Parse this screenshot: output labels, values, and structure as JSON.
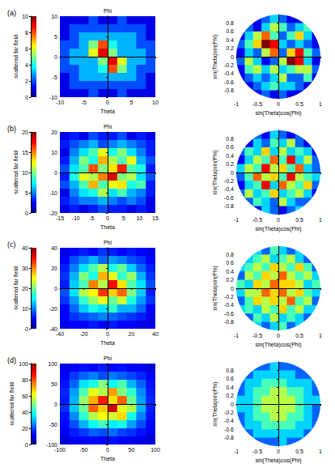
{
  "chart_data": [
    {
      "type": "surface",
      "title": "(a)",
      "xlabel": "Theta",
      "ylabel": "Phi",
      "zlabel": "scattered far field",
      "xlim": [
        -10,
        10
      ],
      "xticks": [
        -10,
        -5,
        0,
        5,
        10
      ],
      "ylim": [
        -10,
        10
      ],
      "yticks": [
        -10,
        -5,
        0,
        5,
        10
      ],
      "zlim": [
        0,
        10
      ],
      "zticks": [
        0,
        2,
        4,
        6,
        8,
        10
      ],
      "values": [
        [
          1,
          1,
          1,
          2,
          1,
          1,
          2,
          1,
          1,
          1
        ],
        [
          1,
          2,
          2,
          2,
          2,
          2,
          2,
          2,
          2,
          1
        ],
        [
          1,
          2,
          3,
          3,
          3,
          3,
          3,
          3,
          2,
          1
        ],
        [
          2,
          2,
          3,
          5,
          8,
          4,
          3,
          3,
          2,
          2
        ],
        [
          2,
          3,
          3,
          6,
          9,
          5,
          3,
          3,
          3,
          2
        ],
        [
          2,
          3,
          3,
          3,
          5,
          9,
          6,
          3,
          3,
          2
        ],
        [
          2,
          2,
          3,
          3,
          4,
          8,
          5,
          3,
          2,
          2
        ],
        [
          1,
          2,
          3,
          3,
          3,
          3,
          3,
          3,
          2,
          1
        ],
        [
          1,
          2,
          2,
          2,
          2,
          2,
          2,
          2,
          2,
          1
        ],
        [
          1,
          1,
          1,
          2,
          1,
          1,
          2,
          1,
          1,
          1
        ]
      ]
    },
    {
      "type": "heatmap",
      "xlabel": "sin(Theta)cos(Phi)",
      "ylabel": "sin(Theta)sin(Phi)",
      "xlim": [
        -1,
        1
      ],
      "xticks": [
        -1,
        -0.5,
        0,
        0.5,
        1
      ],
      "ylim": [
        -1,
        1
      ],
      "yticks": [
        -0.8,
        -0.6,
        -0.4,
        -0.2,
        0,
        0.2,
        0.4,
        0.6,
        0.8
      ],
      "clim": [
        0,
        9
      ],
      "values": [
        [
          null,
          null,
          1,
          2,
          3,
          2,
          1,
          1,
          null,
          null
        ],
        [
          null,
          2,
          1,
          3,
          5,
          4,
          2,
          3,
          4,
          null
        ],
        [
          1,
          3,
          5,
          7,
          4,
          2,
          4,
          6,
          3,
          1
        ],
        [
          2,
          4,
          6,
          9,
          8,
          3,
          2,
          3,
          2,
          1
        ],
        [
          1,
          3,
          2,
          5,
          7,
          2,
          6,
          8,
          4,
          2
        ],
        [
          2,
          5,
          3,
          1,
          2,
          5,
          9,
          8,
          3,
          1
        ],
        [
          1,
          4,
          5,
          3,
          5,
          3,
          4,
          5,
          5,
          2
        ],
        [
          1,
          2,
          3,
          2,
          3,
          5,
          2,
          2,
          4,
          1
        ],
        [
          null,
          1,
          2,
          3,
          4,
          3,
          3,
          2,
          1,
          null
        ],
        [
          null,
          null,
          1,
          2,
          1,
          2,
          1,
          1,
          null,
          null
        ]
      ]
    },
    {
      "type": "surface",
      "title": "(b)",
      "xlabel": "Theta",
      "ylabel": "Phi",
      "zlabel": "scattered far field",
      "xlim": [
        -15,
        15
      ],
      "xticks": [
        -15,
        -10,
        -5,
        0,
        5,
        10,
        15
      ],
      "ylim": [
        -20,
        20
      ],
      "yticks": [
        -20,
        -10,
        0,
        10,
        20
      ],
      "zlim": [
        0,
        20
      ],
      "zticks": [
        0,
        5,
        10,
        15,
        20
      ],
      "values": [
        [
          2,
          3,
          2,
          4,
          3,
          3,
          4,
          2,
          3,
          2
        ],
        [
          3,
          4,
          5,
          6,
          4,
          5,
          6,
          5,
          4,
          3
        ],
        [
          2,
          5,
          7,
          9,
          12,
          8,
          10,
          7,
          5,
          3
        ],
        [
          3,
          6,
          10,
          8,
          14,
          11,
          9,
          12,
          6,
          4
        ],
        [
          4,
          7,
          9,
          16,
          10,
          13,
          17,
          9,
          8,
          3
        ],
        [
          3,
          8,
          12,
          11,
          15,
          18,
          10,
          11,
          7,
          4
        ],
        [
          4,
          6,
          9,
          14,
          9,
          12,
          13,
          8,
          9,
          3
        ],
        [
          2,
          5,
          7,
          8,
          11,
          7,
          9,
          6,
          5,
          3
        ],
        [
          3,
          4,
          5,
          5,
          6,
          5,
          4,
          5,
          4,
          2
        ],
        [
          2,
          3,
          2,
          3,
          4,
          3,
          3,
          2,
          3,
          2
        ]
      ]
    },
    {
      "type": "heatmap",
      "xlabel": "sin(Theta)cos(Phi)",
      "ylabel": "sin(Theta)sin(Phi)",
      "xlim": [
        -1,
        1
      ],
      "xticks": [
        -1,
        -0.5,
        0,
        0.5,
        1
      ],
      "ylim": [
        -1,
        1
      ],
      "yticks": [
        -0.8,
        -0.6,
        -0.4,
        -0.2,
        0,
        0.2,
        0.4,
        0.6,
        0.8
      ],
      "clim": [
        0,
        9
      ],
      "values": [
        [
          null,
          null,
          2,
          1,
          3,
          2,
          1,
          2,
          null,
          null
        ],
        [
          null,
          1,
          3,
          2,
          4,
          3,
          5,
          2,
          1,
          null
        ],
        [
          2,
          4,
          3,
          6,
          3,
          5,
          3,
          4,
          3,
          1
        ],
        [
          1,
          3,
          5,
          4,
          7,
          4,
          8,
          3,
          5,
          2
        ],
        [
          3,
          5,
          4,
          8,
          5,
          6,
          4,
          7,
          3,
          2
        ],
        [
          2,
          4,
          7,
          5,
          6,
          4,
          8,
          5,
          4,
          3
        ],
        [
          1,
          3,
          4,
          8,
          3,
          7,
          5,
          4,
          6,
          2
        ],
        [
          2,
          5,
          3,
          4,
          6,
          3,
          4,
          5,
          3,
          1
        ],
        [
          null,
          2,
          4,
          3,
          2,
          5,
          3,
          2,
          2,
          null
        ],
        [
          null,
          null,
          1,
          3,
          2,
          1,
          2,
          3,
          null,
          null
        ]
      ]
    },
    {
      "type": "surface",
      "title": "(c)",
      "xlabel": "Theta",
      "ylabel": "Phi",
      "zlabel": "scattered far field",
      "xlim": [
        -40,
        40
      ],
      "xticks": [
        -40,
        -20,
        0,
        20,
        40
      ],
      "ylim": [
        -40,
        40
      ],
      "yticks": [
        -40,
        -20,
        0,
        20,
        40
      ],
      "zlim": [
        0,
        40
      ],
      "zticks": [
        0,
        10,
        20,
        30,
        40
      ],
      "values": [
        [
          4,
          5,
          6,
          5,
          7,
          6,
          5,
          6,
          5,
          4
        ],
        [
          5,
          8,
          10,
          12,
          9,
          11,
          10,
          8,
          7,
          5
        ],
        [
          6,
          10,
          14,
          18,
          22,
          16,
          19,
          13,
          9,
          6
        ],
        [
          7,
          12,
          20,
          16,
          28,
          24,
          17,
          21,
          12,
          7
        ],
        [
          6,
          13,
          18,
          30,
          22,
          35,
          26,
          18,
          14,
          8
        ],
        [
          8,
          14,
          22,
          25,
          33,
          27,
          31,
          20,
          13,
          6
        ],
        [
          7,
          11,
          17,
          21,
          24,
          19,
          23,
          16,
          11,
          7
        ],
        [
          5,
          9,
          13,
          16,
          14,
          17,
          12,
          12,
          9,
          5
        ],
        [
          5,
          7,
          8,
          9,
          10,
          9,
          8,
          7,
          6,
          4
        ],
        [
          4,
          5,
          5,
          6,
          5,
          6,
          5,
          5,
          4,
          4
        ]
      ]
    },
    {
      "type": "heatmap",
      "xlabel": "sin(Theta)cos(Phi)",
      "ylabel": "sin(Theta)sin(Phi)",
      "xlim": [
        -1,
        1
      ],
      "xticks": [
        -1,
        -0.5,
        0,
        0.5,
        1
      ],
      "ylim": [
        -1,
        1
      ],
      "yticks": [
        -0.8,
        -0.6,
        -0.4,
        -0.2,
        0,
        0.2,
        0.4,
        0.6,
        0.8
      ],
      "clim": [
        0,
        9
      ],
      "values": [
        [
          null,
          null,
          3,
          2,
          4,
          3,
          2,
          3,
          null,
          null
        ],
        [
          null,
          3,
          4,
          5,
          3,
          4,
          5,
          3,
          2,
          null
        ],
        [
          3,
          4,
          5,
          4,
          6,
          5,
          4,
          6,
          4,
          2
        ],
        [
          2,
          5,
          4,
          6,
          5,
          7,
          5,
          4,
          5,
          3
        ],
        [
          4,
          3,
          6,
          5,
          7,
          6,
          6,
          5,
          3,
          4
        ],
        [
          3,
          5,
          5,
          7,
          6,
          7,
          5,
          6,
          4,
          3
        ],
        [
          2,
          4,
          6,
          5,
          6,
          5,
          7,
          4,
          5,
          2
        ],
        [
          3,
          4,
          3,
          5,
          4,
          6,
          4,
          5,
          3,
          3
        ],
        [
          null,
          2,
          4,
          3,
          5,
          3,
          4,
          3,
          2,
          null
        ],
        [
          null,
          null,
          3,
          2,
          3,
          4,
          2,
          3,
          null,
          null
        ]
      ]
    },
    {
      "type": "surface",
      "title": "(d)",
      "xlabel": "Theta",
      "ylabel": "Phi",
      "zlabel": "scattered far field",
      "xlim": [
        -100,
        100
      ],
      "xticks": [
        -100,
        -50,
        0,
        50,
        100
      ],
      "ylim": [
        -100,
        100
      ],
      "yticks": [
        -100,
        -50,
        0,
        50,
        100
      ],
      "zlim": [
        0,
        100
      ],
      "zticks": [
        0,
        20,
        40,
        60,
        80,
        100
      ],
      "values": [
        [
          10,
          12,
          14,
          12,
          15,
          13,
          14,
          12,
          11,
          9
        ],
        [
          12,
          18,
          22,
          25,
          20,
          24,
          22,
          19,
          16,
          12
        ],
        [
          14,
          22,
          35,
          40,
          50,
          38,
          45,
          30,
          22,
          14
        ],
        [
          16,
          28,
          45,
          60,
          55,
          72,
          50,
          42,
          26,
          15
        ],
        [
          15,
          30,
          52,
          70,
          85,
          65,
          78,
          48,
          28,
          16
        ],
        [
          17,
          32,
          48,
          78,
          68,
          92,
          60,
          55,
          30,
          15
        ],
        [
          14,
          26,
          42,
          55,
          62,
          58,
          66,
          40,
          25,
          14
        ],
        [
          13,
          20,
          30,
          38,
          44,
          36,
          40,
          28,
          20,
          12
        ],
        [
          11,
          15,
          18,
          22,
          20,
          23,
          19,
          17,
          14,
          11
        ],
        [
          9,
          11,
          12,
          13,
          12,
          14,
          12,
          11,
          10,
          9
        ]
      ]
    },
    {
      "type": "heatmap",
      "xlabel": "sin(Theta)cos(Phi)",
      "ylabel": "sin(Theta)sin(Phi)",
      "xlim": [
        -1,
        1
      ],
      "xticks": [
        -1,
        -0.5,
        0,
        0.5,
        1
      ],
      "ylim": [
        -1,
        1
      ],
      "yticks": [
        -0.8,
        -0.6,
        -0.4,
        -0.2,
        0,
        0.2,
        0.4,
        0.6,
        0.8
      ],
      "clim": [
        0,
        9
      ],
      "values": [
        [
          null,
          null,
          2,
          2,
          3,
          2,
          2,
          2,
          null,
          null
        ],
        [
          null,
          2,
          3,
          3,
          3,
          3,
          3,
          2,
          2,
          null
        ],
        [
          2,
          3,
          3,
          4,
          4,
          4,
          3,
          3,
          3,
          2
        ],
        [
          2,
          3,
          4,
          4,
          5,
          5,
          4,
          4,
          3,
          2
        ],
        [
          3,
          3,
          4,
          5,
          5,
          5,
          5,
          4,
          3,
          3
        ],
        [
          3,
          3,
          4,
          5,
          5,
          5,
          5,
          4,
          3,
          2
        ],
        [
          2,
          3,
          4,
          4,
          5,
          5,
          4,
          4,
          3,
          2
        ],
        [
          2,
          3,
          3,
          4,
          4,
          4,
          4,
          3,
          3,
          2
        ],
        [
          null,
          2,
          3,
          3,
          3,
          3,
          3,
          3,
          2,
          null
        ],
        [
          null,
          null,
          2,
          2,
          2,
          3,
          2,
          2,
          null,
          null
        ]
      ]
    }
  ]
}
